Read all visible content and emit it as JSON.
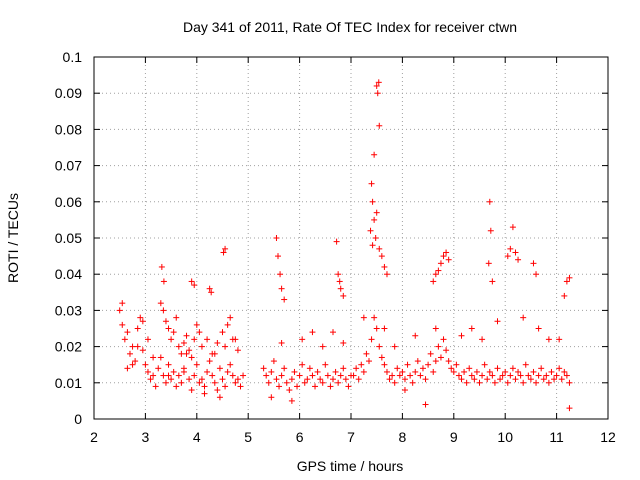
{
  "chart_data": {
    "type": "scatter",
    "title": "Day 341 of 2011, Rate Of TEC Index for receiver ctwn",
    "xlabel": "GPS time / hours",
    "ylabel": "ROTI / TECUs",
    "xlim": [
      2,
      12
    ],
    "ylim": [
      0,
      0.1
    ],
    "xticks": [
      "2",
      "3",
      "4",
      "5",
      "6",
      "7",
      "8",
      "9",
      "10",
      "11",
      "12"
    ],
    "yticks": [
      "0",
      "0.01",
      "0.02",
      "0.03",
      "0.04",
      "0.05",
      "0.06",
      "0.07",
      "0.08",
      "0.09",
      "0.1"
    ],
    "grid": true,
    "marker": "+",
    "series": [
      {
        "name": "ROTI",
        "color": "#ff0000",
        "x": [
          2.5,
          2.55,
          2.6,
          2.65,
          2.7,
          2.75,
          2.8,
          2.85,
          2.9,
          2.95,
          3.0,
          3.05,
          3.1,
          3.15,
          3.2,
          3.25,
          3.3,
          3.35,
          3.4,
          3.45,
          3.5,
          3.55,
          3.6,
          3.65,
          3.7,
          3.75,
          3.8,
          3.85,
          3.9,
          3.95,
          4.0,
          4.05,
          4.1,
          4.15,
          4.2,
          4.25,
          4.3,
          4.35,
          4.4,
          4.45,
          4.5,
          4.55,
          4.6,
          4.65,
          4.7,
          4.75,
          4.8,
          4.85,
          4.9,
          3.3,
          3.35,
          3.4,
          3.45,
          3.5,
          3.55,
          3.6,
          3.65,
          3.7,
          3.75,
          3.8,
          3.85,
          3.9,
          3.95,
          4.0,
          4.05,
          4.1,
          4.2,
          4.3,
          4.4,
          4.5,
          4.55,
          4.6,
          4.65,
          4.7,
          4.8,
          3.32,
          3.36,
          3.9,
          3.95,
          4.25,
          4.28,
          4.52,
          4.55,
          5.3,
          5.35,
          5.4,
          5.45,
          5.5,
          5.55,
          5.6,
          5.65,
          5.7,
          5.75,
          5.8,
          5.85,
          5.9,
          5.95,
          6.0,
          6.05,
          6.1,
          6.15,
          6.2,
          6.25,
          6.3,
          6.35,
          6.4,
          6.45,
          6.5,
          6.55,
          6.6,
          6.65,
          6.7,
          6.75,
          6.8,
          6.85,
          6.9,
          6.95,
          7.0,
          5.55,
          5.58,
          5.62,
          5.65,
          5.7,
          6.72,
          6.75,
          6.78,
          6.8,
          6.85,
          7.05,
          7.1,
          7.15,
          7.2,
          7.25,
          7.3,
          7.35,
          7.4,
          7.45,
          7.5,
          7.55,
          7.6,
          7.65,
          7.7,
          7.75,
          7.8,
          7.85,
          7.9,
          7.95,
          8.0,
          8.05,
          8.1,
          8.15,
          8.2,
          8.25,
          8.3,
          8.35,
          8.4,
          8.45,
          8.5,
          8.55,
          8.6,
          8.65,
          8.7,
          8.75,
          8.8,
          8.85,
          8.9,
          8.95,
          9.0,
          7.4,
          7.42,
          7.45,
          7.48,
          7.5,
          7.52,
          7.54,
          7.55,
          7.45,
          7.5,
          7.55,
          7.6,
          7.65,
          7.7,
          7.38,
          7.42,
          8.7,
          8.75,
          8.8,
          8.85,
          8.9,
          8.6,
          8.65,
          9.05,
          9.1,
          9.15,
          9.2,
          9.25,
          9.3,
          9.35,
          9.4,
          9.45,
          9.5,
          9.55,
          9.6,
          9.65,
          9.7,
          9.75,
          9.8,
          9.85,
          9.9,
          9.95,
          10.0,
          10.05,
          10.1,
          10.15,
          10.2,
          10.25,
          10.3,
          10.35,
          10.4,
          10.45,
          10.5,
          10.55,
          10.6,
          10.65,
          10.7,
          10.75,
          10.8,
          10.85,
          10.9,
          10.95,
          11.0,
          11.05,
          11.1,
          11.15,
          11.2,
          11.25,
          9.7,
          9.72,
          9.68,
          9.75,
          10.05,
          10.1,
          10.15,
          10.2,
          10.25,
          10.55,
          10.6,
          11.15,
          11.2,
          11.25,
          2.55,
          2.65,
          2.75,
          2.85,
          2.95,
          3.05,
          3.15,
          3.45,
          3.75,
          4.15,
          4.35,
          4.45,
          4.75,
          5.45,
          5.65,
          5.85,
          6.05,
          6.25,
          6.45,
          6.65,
          6.85,
          7.25,
          7.65,
          7.85,
          8.05,
          8.25,
          8.45,
          8.65,
          9.15,
          9.35,
          9.55,
          9.85,
          10.35,
          10.65,
          10.85,
          11.05,
          11.25
        ],
        "y": [
          0.03,
          0.026,
          0.022,
          0.014,
          0.018,
          0.02,
          0.016,
          0.025,
          0.028,
          0.019,
          0.015,
          0.013,
          0.011,
          0.012,
          0.009,
          0.014,
          0.017,
          0.012,
          0.01,
          0.015,
          0.011,
          0.013,
          0.009,
          0.012,
          0.01,
          0.014,
          0.018,
          0.011,
          0.008,
          0.012,
          0.015,
          0.01,
          0.011,
          0.009,
          0.013,
          0.016,
          0.012,
          0.01,
          0.008,
          0.014,
          0.011,
          0.009,
          0.013,
          0.015,
          0.012,
          0.01,
          0.011,
          0.009,
          0.012,
          0.032,
          0.03,
          0.027,
          0.025,
          0.022,
          0.024,
          0.028,
          0.02,
          0.018,
          0.021,
          0.023,
          0.019,
          0.017,
          0.022,
          0.026,
          0.024,
          0.02,
          0.022,
          0.018,
          0.021,
          0.024,
          0.02,
          0.026,
          0.028,
          0.022,
          0.019,
          0.042,
          0.038,
          0.038,
          0.037,
          0.036,
          0.035,
          0.046,
          0.047,
          0.014,
          0.012,
          0.01,
          0.013,
          0.016,
          0.011,
          0.009,
          0.012,
          0.014,
          0.01,
          0.008,
          0.011,
          0.013,
          0.009,
          0.012,
          0.015,
          0.01,
          0.011,
          0.014,
          0.012,
          0.009,
          0.013,
          0.011,
          0.01,
          0.015,
          0.012,
          0.009,
          0.011,
          0.013,
          0.01,
          0.012,
          0.014,
          0.011,
          0.009,
          0.012,
          0.05,
          0.045,
          0.04,
          0.036,
          0.033,
          0.049,
          0.04,
          0.038,
          0.036,
          0.034,
          0.012,
          0.014,
          0.011,
          0.015,
          0.013,
          0.018,
          0.016,
          0.022,
          0.028,
          0.025,
          0.02,
          0.017,
          0.015,
          0.013,
          0.011,
          0.012,
          0.01,
          0.014,
          0.012,
          0.013,
          0.011,
          0.015,
          0.012,
          0.01,
          0.013,
          0.016,
          0.012,
          0.014,
          0.011,
          0.015,
          0.018,
          0.013,
          0.016,
          0.02,
          0.017,
          0.022,
          0.019,
          0.016,
          0.014,
          0.013,
          0.065,
          0.06,
          0.055,
          0.05,
          0.092,
          0.09,
          0.093,
          0.081,
          0.073,
          0.057,
          0.047,
          0.045,
          0.042,
          0.04,
          0.052,
          0.048,
          0.041,
          0.043,
          0.045,
          0.046,
          0.044,
          0.038,
          0.04,
          0.015,
          0.012,
          0.011,
          0.013,
          0.01,
          0.014,
          0.012,
          0.011,
          0.013,
          0.01,
          0.012,
          0.015,
          0.011,
          0.013,
          0.012,
          0.01,
          0.014,
          0.011,
          0.012,
          0.013,
          0.01,
          0.012,
          0.014,
          0.011,
          0.013,
          0.012,
          0.01,
          0.015,
          0.012,
          0.011,
          0.013,
          0.01,
          0.012,
          0.014,
          0.011,
          0.012,
          0.01,
          0.013,
          0.011,
          0.012,
          0.014,
          0.011,
          0.013,
          0.012,
          0.01,
          0.06,
          0.052,
          0.043,
          0.038,
          0.045,
          0.047,
          0.053,
          0.046,
          0.044,
          0.043,
          0.04,
          0.034,
          0.038,
          0.039,
          0.032,
          0.024,
          0.015,
          0.02,
          0.027,
          0.022,
          0.017,
          0.012,
          0.013,
          0.007,
          0.018,
          0.006,
          0.022,
          0.006,
          0.021,
          0.005,
          0.022,
          0.024,
          0.02,
          0.024,
          0.021,
          0.028,
          0.025,
          0.02,
          0.008,
          0.023,
          0.004,
          0.025,
          0.023,
          0.025,
          0.022,
          0.027,
          0.028,
          0.025,
          0.022,
          0.022,
          0.003
        ]
      }
    ]
  }
}
